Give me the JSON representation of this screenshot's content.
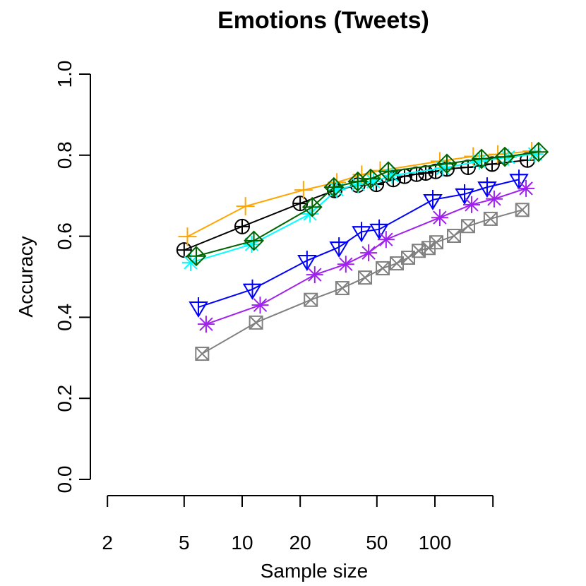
{
  "chart_data": {
    "type": "line",
    "title": "Emotions (Tweets)",
    "xlabel": "Sample size",
    "ylabel": "Accuracy",
    "xscale": "log",
    "xlim": [
      2,
      350
    ],
    "ylim": [
      0,
      1
    ],
    "x_ticks": [
      2,
      5,
      10,
      20,
      50,
      100,
      200
    ],
    "x_tick_labels": [
      "2",
      "5",
      "10",
      "20",
      "50",
      "100",
      ""
    ],
    "y_ticks": [
      0,
      0.2,
      0.4,
      0.6,
      0.8,
      1.0
    ],
    "y_tick_labels": [
      "0.0",
      "0.2",
      "0.4",
      "0.6",
      "0.8",
      "1.0"
    ],
    "grid": false,
    "series": [
      {
        "color": "#000000",
        "marker": "circle-plus",
        "x": [
          5,
          10,
          20,
          30.2,
          39.8,
          49.7,
          60.8,
          69.6,
          80.3,
          89.6,
          100.9,
          115.4,
          148.6,
          198,
          302
        ],
        "y": [
          0.566,
          0.624,
          0.681,
          0.713,
          0.726,
          0.728,
          0.74,
          0.748,
          0.753,
          0.756,
          0.76,
          0.766,
          0.77,
          0.778,
          0.788
        ]
      },
      {
        "color": "#FFA500",
        "marker": "plus",
        "x": [
          5.2,
          10.4,
          20.8,
          31,
          41.7,
          52,
          106,
          158,
          212,
          318
        ],
        "y": [
          0.599,
          0.674,
          0.714,
          0.733,
          0.752,
          0.762,
          0.785,
          0.797,
          0.802,
          0.81
        ]
      },
      {
        "color": "#00FFFF",
        "marker": "asterisk",
        "x": [
          5.4,
          11.2,
          22.5,
          31,
          40,
          48,
          60,
          110,
          170,
          240,
          330
        ],
        "y": [
          0.535,
          0.58,
          0.655,
          0.715,
          0.728,
          0.735,
          0.75,
          0.768,
          0.785,
          0.795,
          0.803
        ]
      },
      {
        "color": "#006400",
        "marker": "diamond-plus",
        "x": [
          5.78,
          11.5,
          23.1,
          29.9,
          39.8,
          46.4,
          57.3,
          115.4,
          174.6,
          230.6,
          345
        ],
        "y": [
          0.551,
          0.589,
          0.672,
          0.721,
          0.735,
          0.742,
          0.76,
          0.779,
          0.791,
          0.796,
          0.808
        ]
      },
      {
        "color": "#0000FF",
        "marker": "triangle-down-plus",
        "x": [
          5.93,
          11.3,
          21.7,
          31.8,
          41.6,
          51.4,
          97.5,
          142.5,
          186.6,
          272.9
        ],
        "y": [
          0.425,
          0.469,
          0.54,
          0.573,
          0.611,
          0.617,
          0.69,
          0.704,
          0.721,
          0.74
        ]
      },
      {
        "color": "#A020F0",
        "marker": "asterisk",
        "x": [
          6.5,
          12.4,
          23.8,
          34.5,
          45.3,
          55.8,
          106,
          155,
          203,
          297
        ],
        "y": [
          0.383,
          0.43,
          0.505,
          0.531,
          0.559,
          0.592,
          0.646,
          0.678,
          0.692,
          0.718
        ]
      },
      {
        "color": "#808080",
        "marker": "square-x",
        "x": [
          6.2,
          11.8,
          22.7,
          33.1,
          43.4,
          53.6,
          63.4,
          72.6,
          82.4,
          92.7,
          101.7,
          125.6,
          148.6,
          194.5,
          284
        ],
        "y": [
          0.31,
          0.387,
          0.443,
          0.472,
          0.498,
          0.521,
          0.533,
          0.547,
          0.564,
          0.571,
          0.585,
          0.601,
          0.625,
          0.643,
          0.665
        ]
      }
    ]
  }
}
